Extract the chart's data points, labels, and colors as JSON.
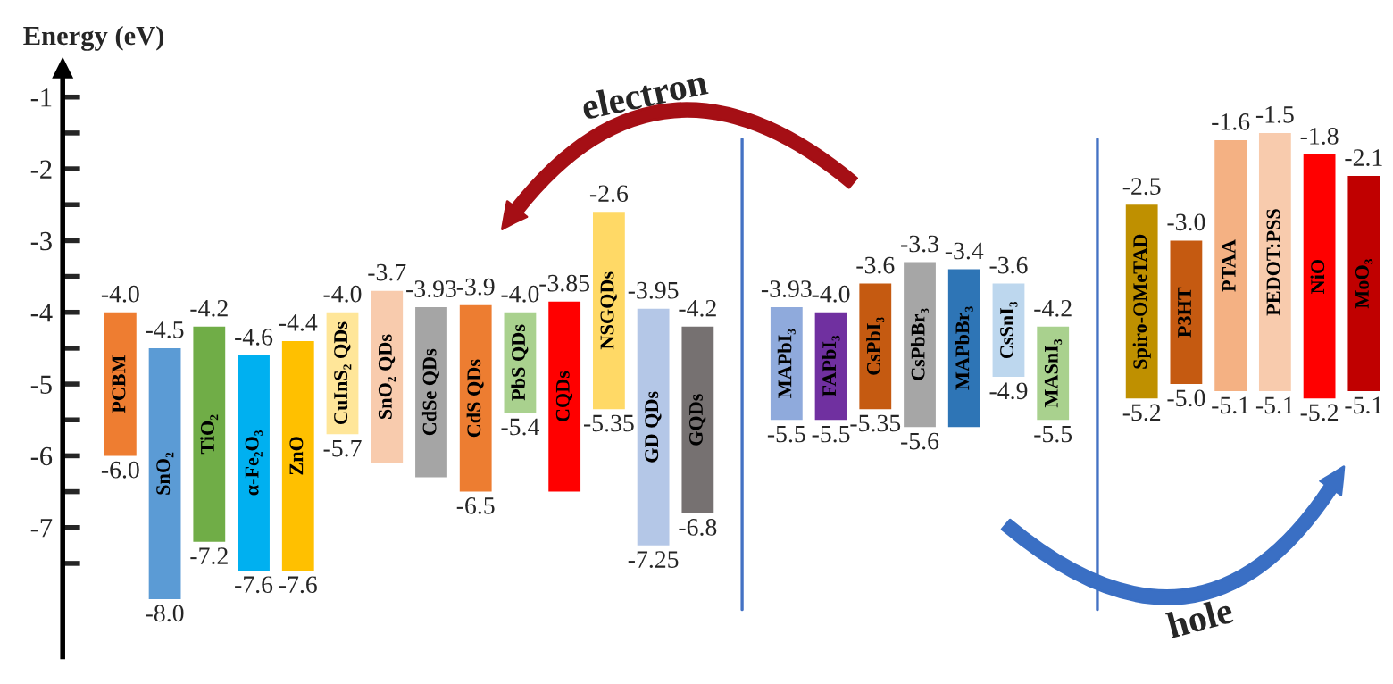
{
  "chart_data": {
    "type": "bar",
    "ylabel": "Energy (eV)",
    "categories": [
      "PCBM",
      "SnO₂",
      "TiO₂",
      "α-Fe₂O₃",
      "ZnO",
      "CuInS₂ QDs",
      "SnO₂ QDs",
      "CdSe QDs",
      "CdS QDs",
      "PbS QDs",
      "CQDs",
      "NSGQDs",
      "GD QDs",
      "GQDs",
      null,
      "MAPbI₃",
      "FAPbI₃",
      "CsPbI₃",
      "CsPbBr₃",
      "MAPbBr₃",
      "CsSnI₃",
      "MASnI₃",
      null,
      "Spiro-OMeTAD",
      "P3HT",
      "PTAA",
      "PEDOT:PSS",
      "NiO",
      "MoO₃"
    ],
    "base": [
      -6.0,
      -8.0,
      -7.2,
      -7.6,
      -7.6,
      -5.7,
      -6.1,
      -6.3,
      -6.5,
      -5.4,
      -6.5,
      -5.35,
      -7.25,
      -6.8,
      null,
      -5.5,
      -5.5,
      -5.35,
      -5.6,
      -5.6,
      -4.9,
      -5.5,
      null,
      -5.2,
      -5.0,
      -5.1,
      -5.1,
      -5.2,
      -5.1
    ],
    "values": [
      2.0,
      3.5,
      3.0,
      3.0,
      3.2,
      1.7,
      2.4,
      2.37,
      2.6,
      1.4,
      2.65,
      2.75,
      3.3,
      2.6,
      null,
      1.57,
      1.5,
      1.75,
      2.3,
      2.2,
      1.3,
      1.3,
      null,
      2.7,
      2.0,
      3.5,
      3.6,
      3.4,
      3.0
    ],
    "colors": [
      "#ee7d31",
      "#5b9bd5",
      "#70ad47",
      "#00b0f0",
      "#ffc000",
      "#ffe699",
      "#f8cbad",
      "#a5a5a5",
      "#ed7d31",
      "#a9d18e",
      "#ff0000",
      "#ffd966",
      "#b4c7e7",
      "#767171",
      null,
      "#8faadc",
      "#7030a0",
      "#c55a11",
      "#a6a6a6",
      "#2e75b6",
      "#bdd7ee",
      "#a9d18e",
      null,
      "#bf9000",
      "#c55a11",
      "#f4b183",
      "#f8cbad",
      "#ff0000",
      "#c00000"
    ],
    "ylim": [
      -8.8,
      -0.6
    ],
    "yticks": [
      -1,
      {
        "value": -1.5,
        "label": null
      },
      -2,
      {
        "value": -2.5,
        "label": null
      },
      -3,
      {
        "value": -3.5,
        "label": null
      },
      -4,
      {
        "value": -4.5,
        "label": null
      },
      -5,
      {
        "value": -5.5,
        "label": null
      },
      -6,
      {
        "value": -6.5,
        "label": null
      },
      -7,
      {
        "value": -7.5,
        "label": null
      }
    ],
    "annotations": [
      {
        "text": "-4.0",
        "x": "PCBM",
        "y": -4.0
      },
      {
        "text": "-6.0",
        "x": "PCBM",
        "y": -6.0
      },
      {
        "text": "-4.5",
        "x": "SnO₂",
        "y": -4.5
      },
      {
        "text": "-8.0",
        "x": "SnO₂",
        "y": -8.0
      },
      {
        "text": "-4.2",
        "x": "TiO₂",
        "y": -4.2
      },
      {
        "text": "-7.2",
        "x": "TiO₂",
        "y": -7.2
      },
      {
        "text": "-4.6",
        "x": "α-Fe₂O₃",
        "y": -4.6
      },
      {
        "text": "-7.6",
        "x": "α-Fe₂O₃",
        "y": -7.6
      },
      {
        "text": "-4.4",
        "x": "ZnO",
        "y": -4.4
      },
      {
        "text": "-7.6",
        "x": "ZnO",
        "y": -7.6
      },
      {
        "text": "-4.0",
        "x": "CuInS₂ QDs",
        "y": -4.0
      },
      {
        "text": "-5.7",
        "x": "CuInS₂ QDs",
        "y": -5.7
      },
      {
        "text": "-3.7",
        "x": "SnO₂ QDs",
        "y": -3.7
      },
      {
        "text": "-3.93",
        "x": "CdSe QDs",
        "y": -3.93
      },
      {
        "text": "-3.9",
        "x": "CdS QDs",
        "y": -3.9
      },
      {
        "text": "-6.5",
        "x": "CdS QDs",
        "y": -6.5
      },
      {
        "text": "-4.0",
        "x": "PbS QDs",
        "y": -4.0
      },
      {
        "text": "-5.4",
        "x": "PbS QDs",
        "y": -5.4
      },
      {
        "text": "-3.85",
        "x": "CQDs",
        "y": -3.85
      },
      {
        "text": "-2.6",
        "x": "NSGQDs",
        "y": -2.6
      },
      {
        "text": "-5.35",
        "x": "NSGQDs",
        "y": -5.35
      },
      {
        "text": "-3.95",
        "x": "GD QDs",
        "y": -3.95
      },
      {
        "text": "-7.25",
        "x": "GD QDs",
        "y": -7.25
      },
      {
        "text": "-4.2",
        "x": "GQDs",
        "y": -4.2
      },
      {
        "text": "-6.8",
        "x": "GQDs",
        "y": -6.8
      },
      {
        "text": "-3.93",
        "x": "MAPbI₃",
        "y": -3.93
      },
      {
        "text": "-5.5",
        "x": "MAPbI₃",
        "y": -5.5
      },
      {
        "text": "-4.0",
        "x": "FAPbI₃",
        "y": -4.0
      },
      {
        "text": "-5.5",
        "x": "FAPbI₃",
        "y": -5.5
      },
      {
        "text": "-3.6",
        "x": "CsPbI₃",
        "y": -3.6
      },
      {
        "text": "-5.35",
        "x": "CsPbI₃",
        "y": -5.35
      },
      {
        "text": "-3.3",
        "x": "CsPbBr₃",
        "y": -3.3
      },
      {
        "text": "-5.6",
        "x": "CsPbBr₃",
        "y": -5.6
      },
      {
        "text": "-3.4",
        "x": "MAPbBr₃",
        "y": -3.4
      },
      {
        "text": "-3.6",
        "x": "CsSnI₃",
        "y": -3.6
      },
      {
        "text": "-4.9",
        "x": "CsSnI₃",
        "y": -4.9
      },
      {
        "text": "-4.2",
        "x": "MASnI₃",
        "y": -4.2
      },
      {
        "text": "-5.5",
        "x": "MASnI₃",
        "y": -5.5
      },
      {
        "text": "-2.5",
        "x": "Spiro-OMeTAD",
        "y": -2.5
      },
      {
        "text": "-5.2",
        "x": "Spiro-OMeTAD",
        "y": -5.2
      },
      {
        "text": "-3.0",
        "x": "P3HT",
        "y": -3.0
      },
      {
        "text": "-5.0",
        "x": "P3HT",
        "y": -5.0
      },
      {
        "text": "-1.6",
        "x": "PTAA",
        "y": -1.6
      },
      {
        "text": "-5.1",
        "x": "PTAA",
        "y": -5.1
      },
      {
        "text": "-1.5",
        "x": "PEDOT:PSS",
        "y": -1.5
      },
      {
        "text": "-5.1",
        "x": "PEDOT:PSS",
        "y": -5.1
      },
      {
        "text": "-1.8",
        "x": "NiO",
        "y": -1.8
      },
      {
        "text": "-5.2",
        "x": "NiO",
        "y": -5.2
      },
      {
        "text": "-2.1",
        "x": "MoO₃",
        "y": -2.1
      },
      {
        "text": "-5.1",
        "x": "MoO₃",
        "y": -5.1
      },
      "electron",
      "hole"
    ]
  }
}
